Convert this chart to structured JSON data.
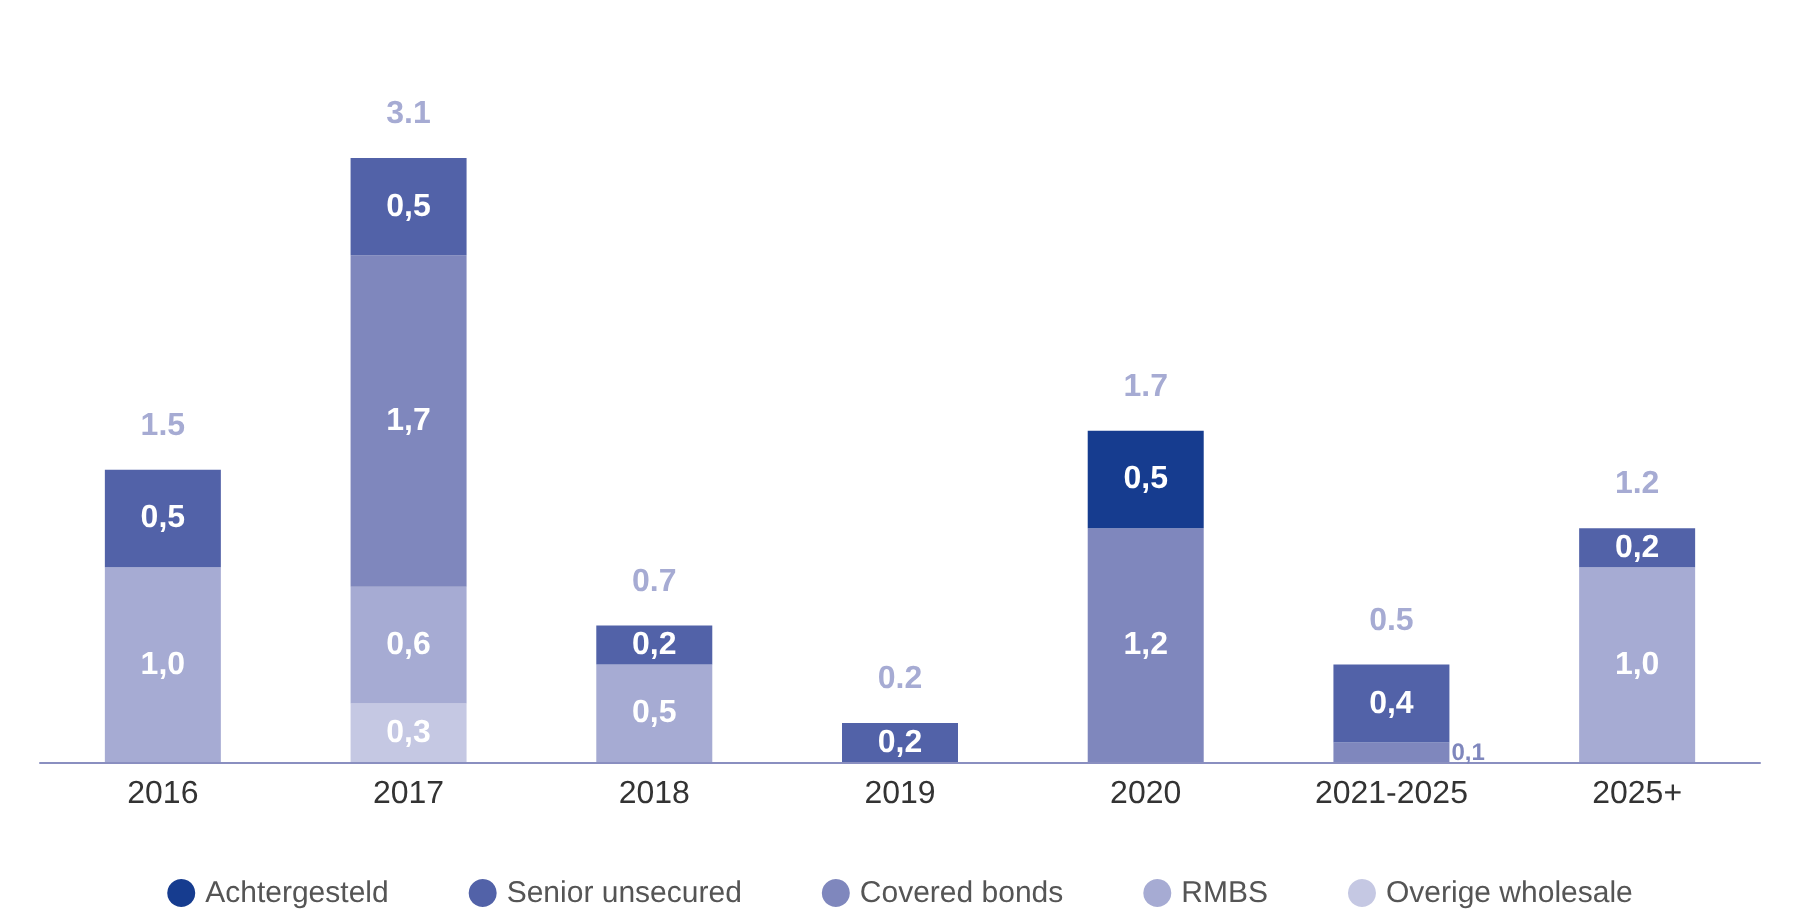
{
  "chart_data": {
    "type": "bar",
    "stacked": true,
    "categories": [
      "2016",
      "2017",
      "2018",
      "2019",
      "2020",
      "2021-2025",
      "2025+"
    ],
    "series": [
      {
        "name": "Overige wholesale",
        "color": "#c5c8e3",
        "values": [
          null,
          0.3,
          null,
          null,
          null,
          null,
          null
        ],
        "value_labels": [
          null,
          "0,3",
          null,
          null,
          null,
          null,
          null
        ]
      },
      {
        "name": "RMBS",
        "color": "#a6abd3",
        "values": [
          1.0,
          0.6,
          0.5,
          null,
          null,
          null,
          1.0
        ],
        "value_labels": [
          "1,0",
          "0,6",
          "0,5",
          null,
          null,
          null,
          "1,0"
        ]
      },
      {
        "name": "Covered bonds",
        "color": "#7f87bd",
        "values": [
          null,
          1.7,
          null,
          null,
          1.2,
          0.1,
          null
        ],
        "value_labels": [
          null,
          "1,7",
          null,
          null,
          "1,2",
          "0,1",
          null
        ]
      },
      {
        "name": "Senior unsecured",
        "color": "#5262a8",
        "values": [
          0.5,
          0.5,
          0.2,
          0.2,
          null,
          0.4,
          0.2
        ],
        "value_labels": [
          "0,5",
          "0,5",
          "0,2",
          "0,2",
          null,
          "0,4",
          "0,2"
        ]
      },
      {
        "name": "Achtergesteld",
        "color": "#163c8f",
        "values": [
          null,
          null,
          null,
          null,
          0.5,
          null,
          null
        ],
        "value_labels": [
          null,
          null,
          null,
          null,
          "0,5",
          null,
          null
        ]
      }
    ],
    "totals": [
      "1.5",
      "3.1",
      "0.7",
      "0.2",
      "1.7",
      "0.5",
      "1.2"
    ],
    "legend": "bottom"
  }
}
